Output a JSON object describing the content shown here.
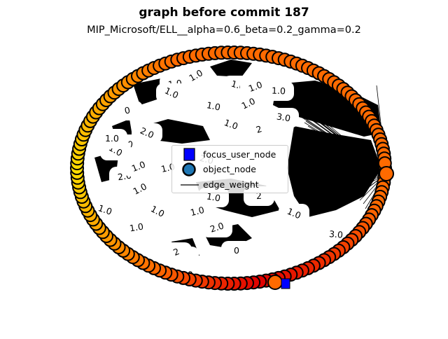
{
  "title": "graph before commit 187",
  "subtitle": "MIP_Microsoft/ELL__alpha=0.6_beta=0.2_gamma=0.2",
  "legend": {
    "items": [
      {
        "label": "focus_user_node",
        "marker": "blue-square",
        "color": "#0000ff"
      },
      {
        "label": "object_node",
        "marker": "circle",
        "color": "#1f77b4"
      },
      {
        "label": "edge_weight",
        "marker": "line",
        "color": "#000000"
      }
    ]
  },
  "colors": {
    "node_yellow": "#ffdd00",
    "node_orange": "#ff6a00",
    "node_red": "#e00000",
    "node_edge": "#000000",
    "focus_node": "#0000ff",
    "edge": "#000000",
    "label_box": "#ffffff"
  },
  "edge_labels": [
    "1.0",
    "1.0",
    "1.0",
    "1.0",
    "1.0",
    "1.0",
    "0",
    "1.0",
    "1.0",
    "3.0",
    "1.0",
    "2",
    "1.0",
    "1.0",
    "2.0",
    "2.0",
    "1.0",
    "1.0",
    "2.0",
    "1.0",
    "1.0",
    "1.0",
    "2",
    "1.0",
    "2.0",
    "3.0",
    "1.0",
    "1.0",
    "1",
    "2",
    "0",
    "1.0",
    "1.0",
    "3.0",
    "0",
    "1.0"
  ]
}
